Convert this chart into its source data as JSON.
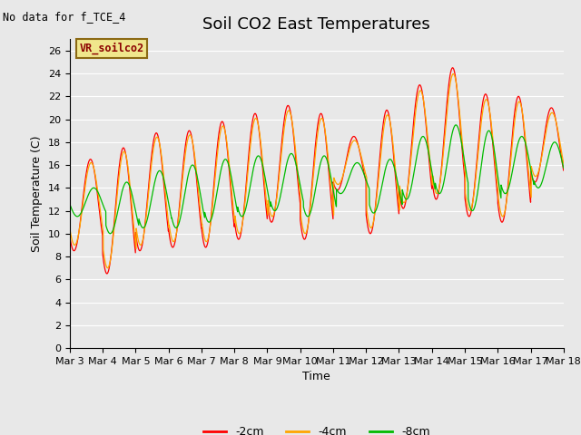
{
  "title": "Soil CO2 East Temperatures",
  "no_data_label": "No data for f_TCE_4",
  "sensor_label": "VR_soilco2",
  "xlabel": "Time",
  "ylabel": "Soil Temperature (C)",
  "ylim": [
    0,
    27
  ],
  "yticks": [
    0,
    2,
    4,
    6,
    8,
    10,
    12,
    14,
    16,
    18,
    20,
    22,
    24,
    26
  ],
  "xtick_labels": [
    "Mar 3",
    "Mar 4",
    "Mar 5",
    "Mar 6",
    "Mar 7",
    "Mar 8",
    "Mar 9",
    "Mar 10",
    "Mar 11",
    "Mar 12",
    "Mar 13",
    "Mar 14",
    "Mar 15",
    "Mar 16",
    "Mar 17",
    "Mar 18"
  ],
  "line_colors": [
    "#ff0000",
    "#ffa500",
    "#00bb00"
  ],
  "line_labels": [
    "-2cm",
    "-4cm",
    "-8cm"
  ],
  "background_color": "#e8e8e8",
  "grid_color": "#ffffff",
  "title_fontsize": 13,
  "label_fontsize": 9,
  "tick_fontsize": 8,
  "figsize": [
    6.4,
    4.8
  ],
  "dpi": 100
}
